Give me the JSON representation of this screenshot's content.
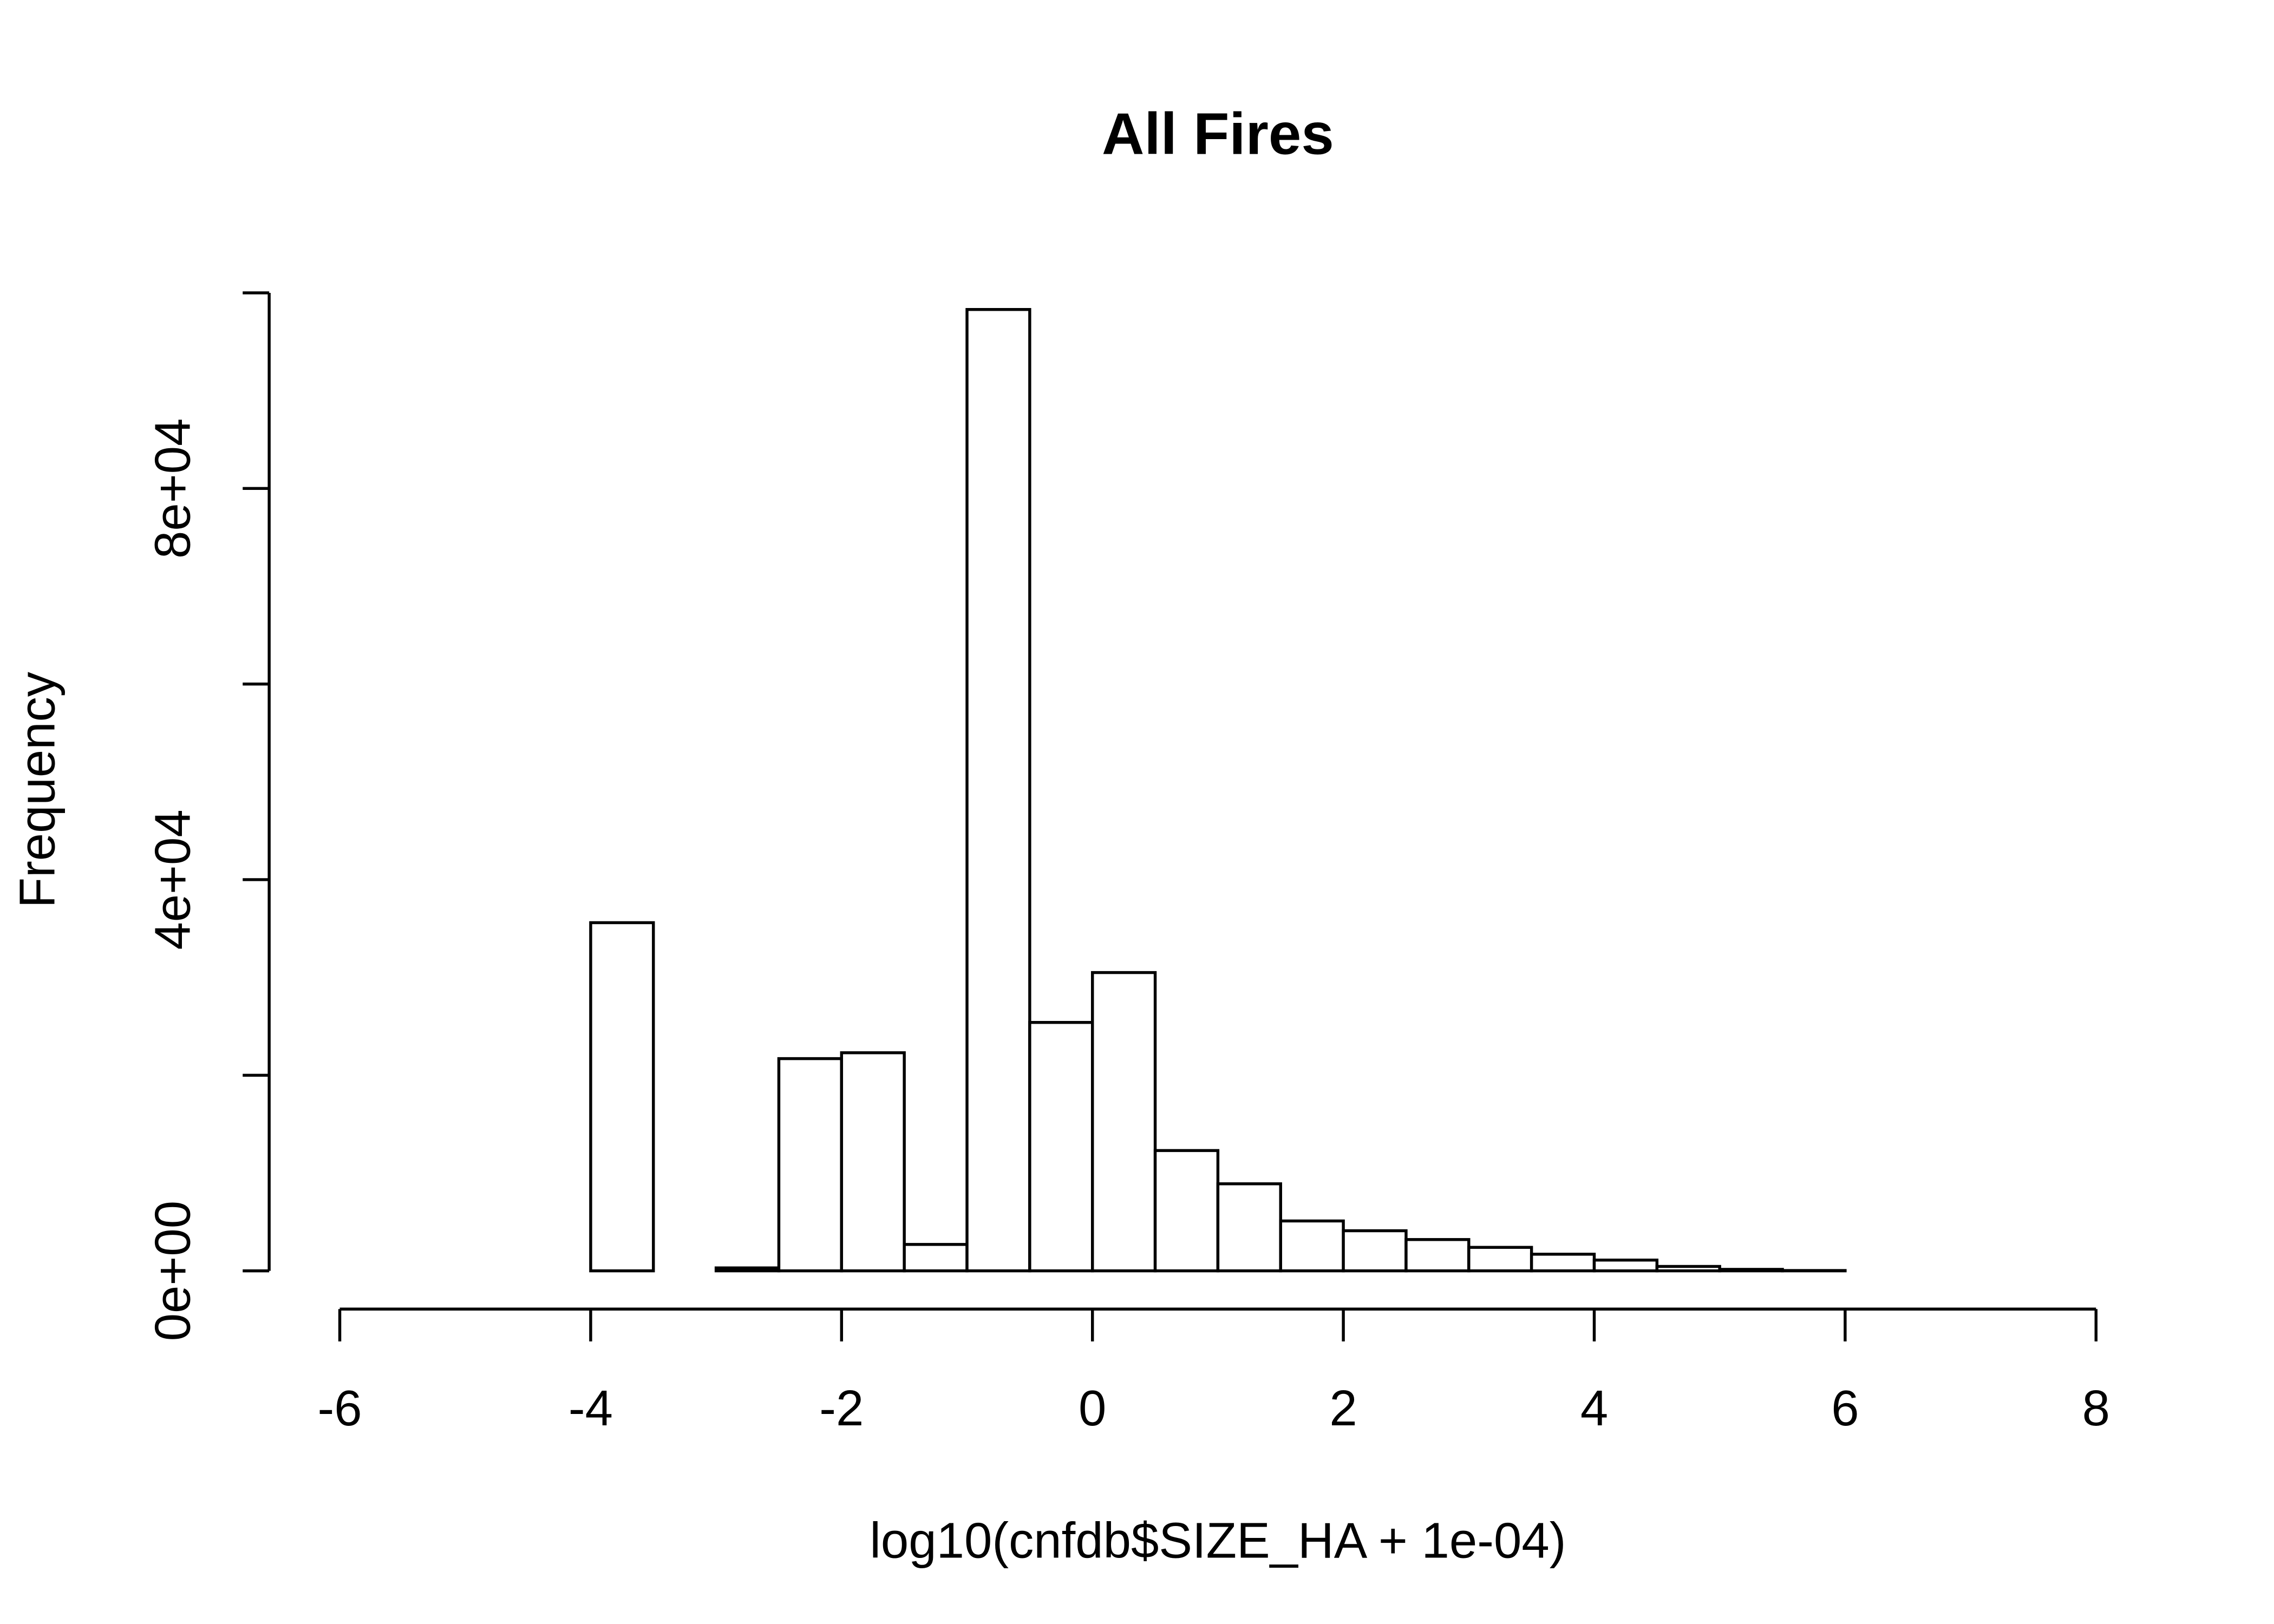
{
  "chart_data": {
    "type": "histogram",
    "title": "All Fires",
    "x_label": "log10(cnfdb$SIZE_HA + 1e-04)",
    "y_label": "Frequency",
    "bins": [
      -4,
      -3.5,
      -3,
      -2.5,
      -2,
      -1.5,
      -1,
      -0.5,
      0,
      0.5,
      1,
      1.5,
      2,
      2.5,
      3,
      3.5,
      4,
      4.5,
      5,
      5.5,
      6
    ],
    "values": [
      35600,
      0,
      300,
      21700,
      22300,
      2700,
      98300,
      25400,
      30500,
      12300,
      8900,
      5100,
      4100,
      3200,
      2400,
      1700,
      1100,
      450,
      150,
      30
    ],
    "color": "#ffffff",
    "edge_color": "#000000",
    "xlim": [
      -6,
      8
    ],
    "xticks": [
      -6,
      -4,
      -2,
      0,
      2,
      4,
      6,
      8
    ],
    "ylim": [
      0,
      100000
    ],
    "yticks": [
      {
        "value": 0,
        "label": "0e+00"
      },
      {
        "value": 20000,
        "label": null
      },
      {
        "value": 40000,
        "label": "4e+04"
      },
      {
        "value": 60000,
        "label": null
      },
      {
        "value": 80000,
        "label": "8e+04"
      },
      {
        "value": 100000,
        "label": null
      }
    ]
  }
}
